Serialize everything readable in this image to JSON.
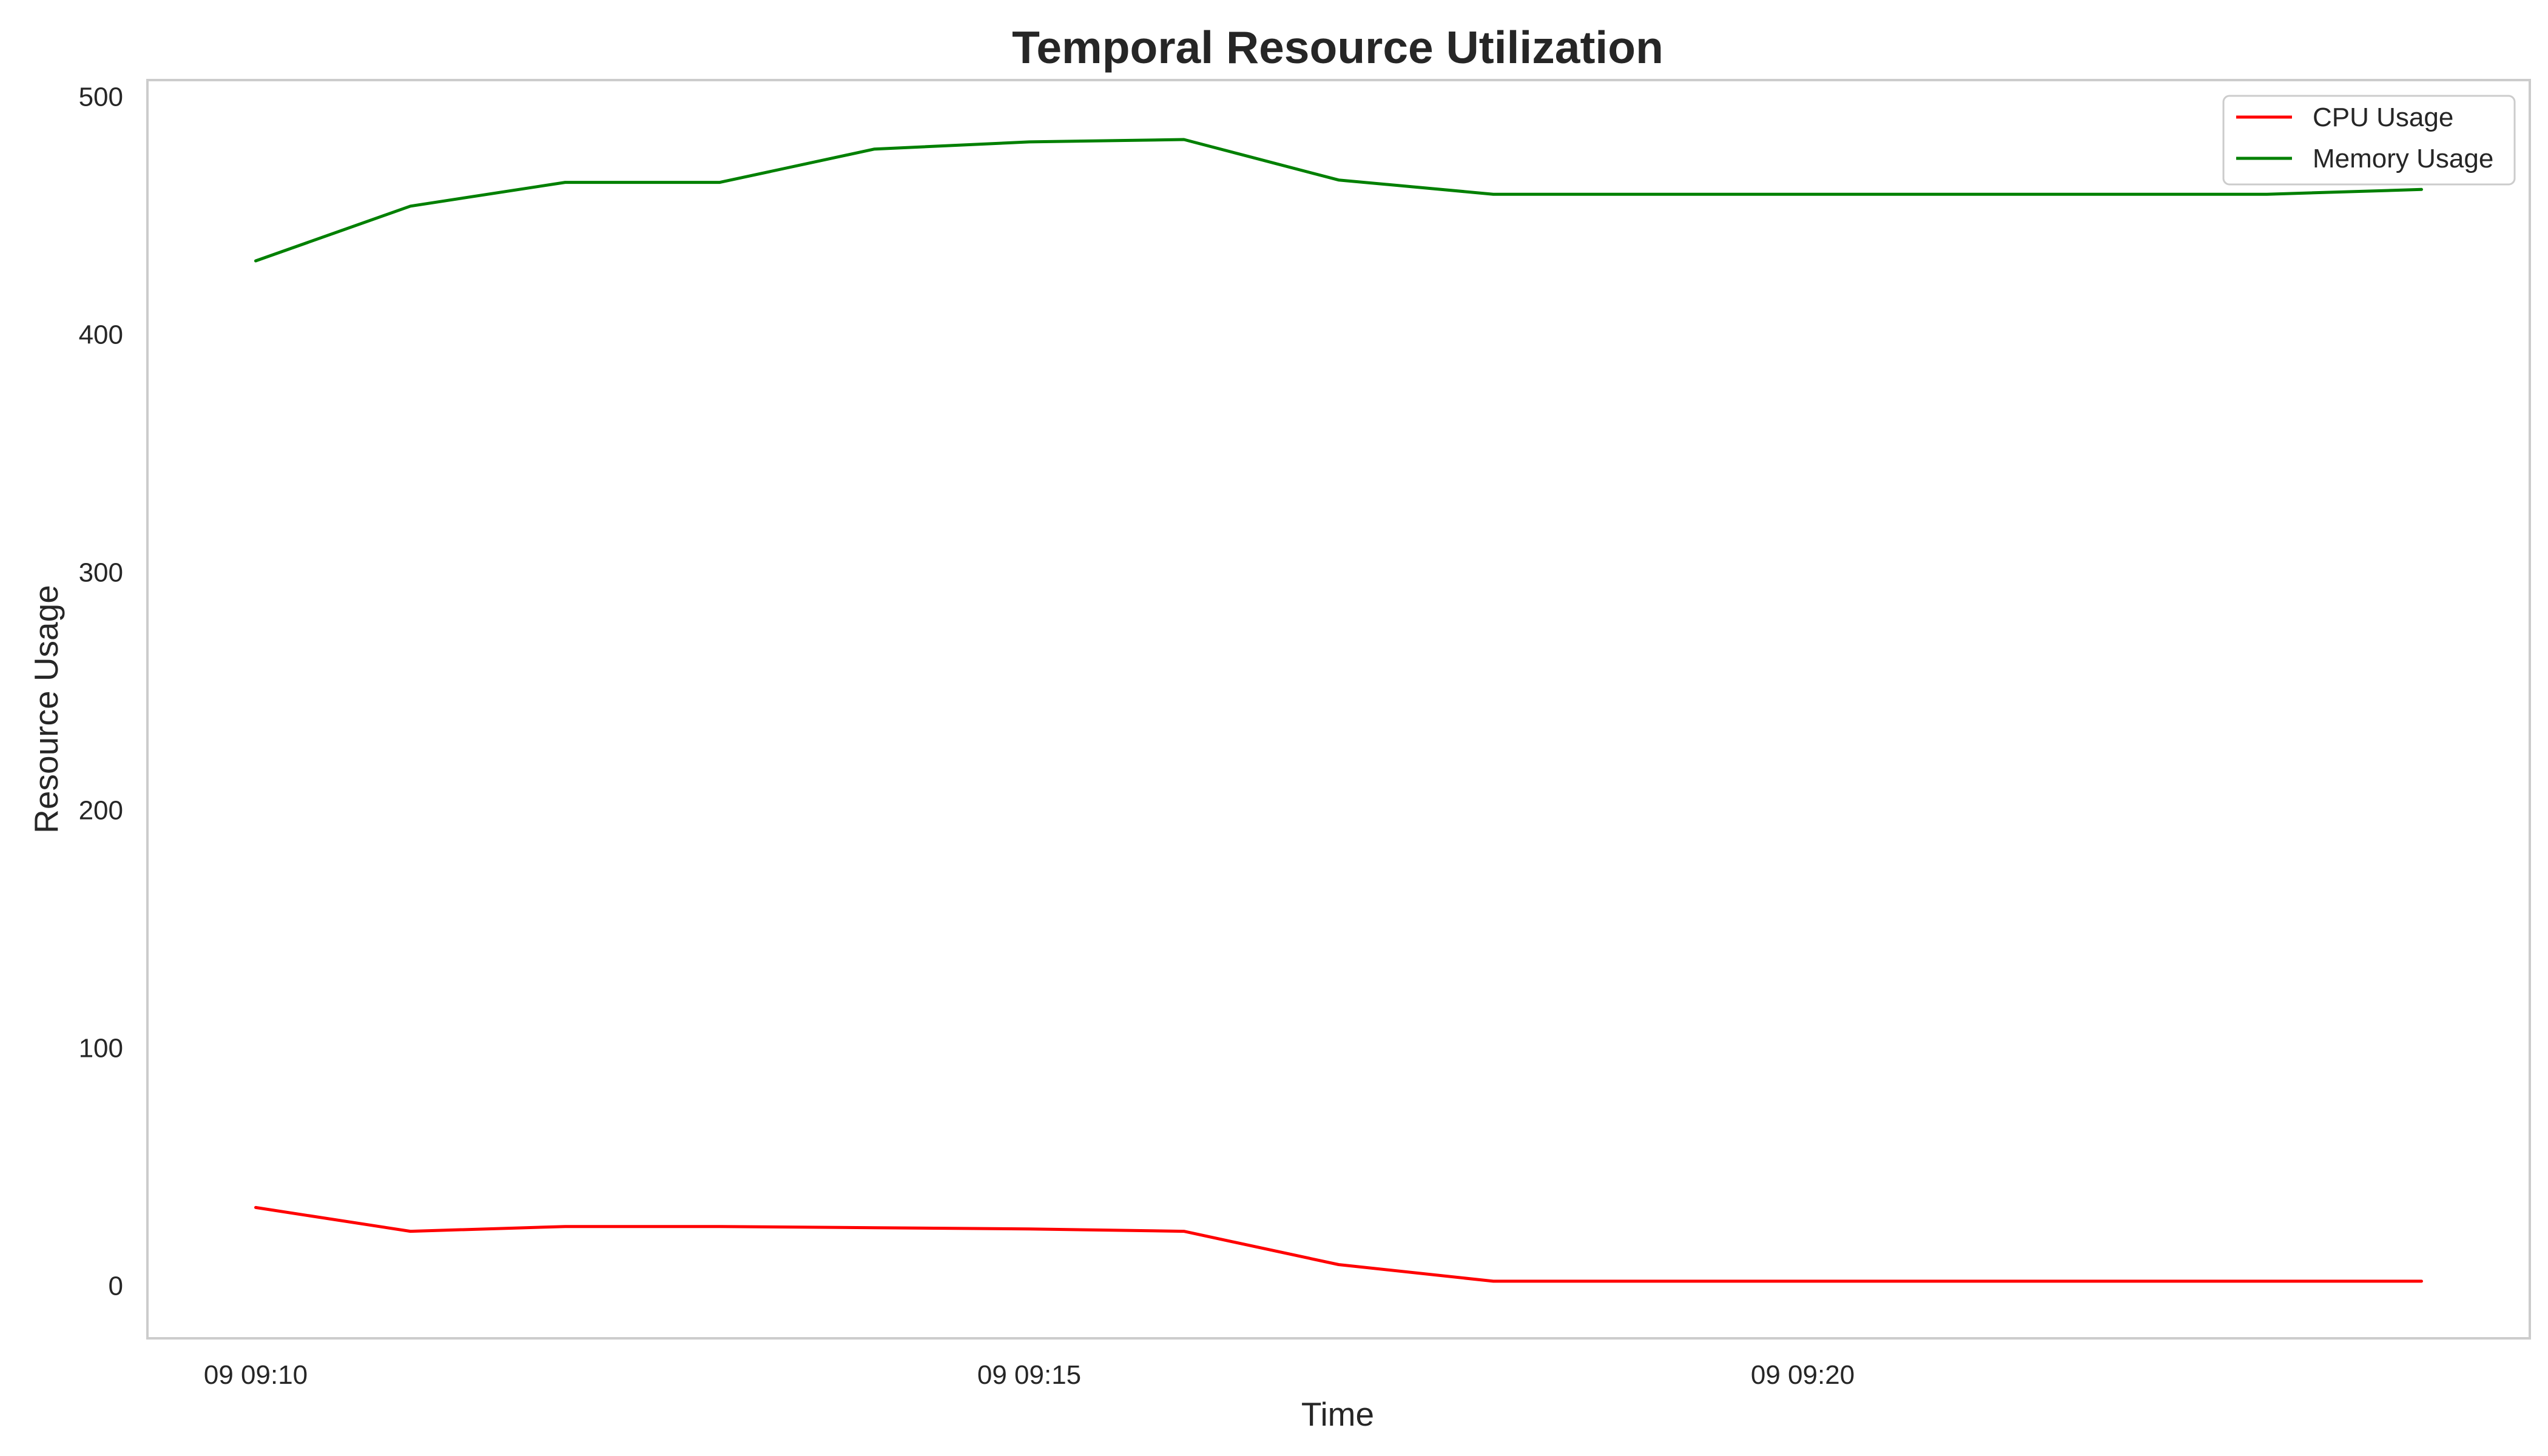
{
  "chart_data": {
    "type": "line",
    "title": "Temporal Resource Utilization",
    "xlabel": "Time",
    "ylabel": "Resource Usage",
    "x": [
      "09 09:10",
      "09 09:11",
      "09 09:12",
      "09 09:13",
      "09 09:14",
      "09 09:15",
      "09 09:16",
      "09 09:17",
      "09 09:18",
      "09 09:19",
      "09 09:20",
      "09 09:21",
      "09 09:22",
      "09 09:23",
      "09 09:24"
    ],
    "x_ticks": [
      {
        "label": "09 09:10",
        "index": 0
      },
      {
        "label": "09 09:15",
        "index": 5
      },
      {
        "label": "09 09:20",
        "index": 10
      }
    ],
    "xlim": [
      -0.7,
      14.7
    ],
    "y_ticks": [
      0,
      100,
      200,
      300,
      400,
      500
    ],
    "ylim": [
      -22,
      507
    ],
    "grid": false,
    "legend_position": "top-right",
    "series": [
      {
        "name": "CPU Usage",
        "color": "#ff0000",
        "values": [
          33,
          23,
          25,
          25,
          24.5,
          24,
          23,
          9,
          2,
          2,
          2,
          2,
          2,
          2,
          2
        ]
      },
      {
        "name": "Memory Usage",
        "color": "#008000",
        "values": [
          431,
          454,
          464,
          464,
          478,
          481,
          482,
          465,
          459,
          459,
          459,
          459,
          459,
          459,
          461
        ]
      }
    ]
  }
}
